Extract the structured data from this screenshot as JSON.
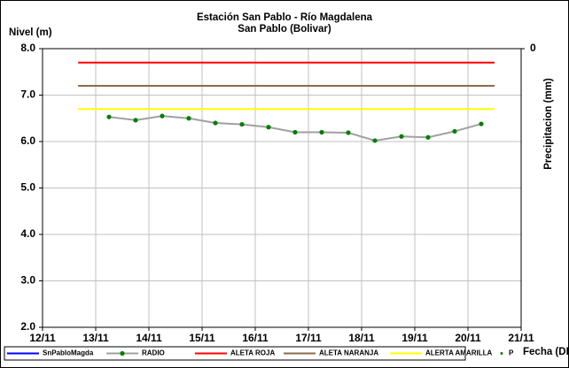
{
  "chart_data": {
    "type": "line",
    "title": "Estación San Pablo - Río Magdalena",
    "subtitle": "San Pablo (Bolivar)",
    "y_label": "Nivel (m)",
    "x_label": "Fecha (DD/MM)",
    "y2_label": "Precipitacion (mm)",
    "xlim": [
      12,
      21
    ],
    "xticks": [
      {
        "value": 12,
        "label": "12/11"
      },
      {
        "value": 13,
        "label": "13/11"
      },
      {
        "value": 14,
        "label": "14/11"
      },
      {
        "value": 15,
        "label": "15/11"
      },
      {
        "value": 16,
        "label": "16/11"
      },
      {
        "value": 17,
        "label": "17/11"
      },
      {
        "value": 18,
        "label": "18/11"
      },
      {
        "value": 19,
        "label": "19/11"
      },
      {
        "value": 20,
        "label": "20/11"
      },
      {
        "value": 21,
        "label": "21/11"
      }
    ],
    "ylim": [
      2,
      8
    ],
    "yticks": [
      {
        "value": 2,
        "label": "2.0"
      },
      {
        "value": 3,
        "label": "3.0"
      },
      {
        "value": 4,
        "label": "4.0"
      },
      {
        "value": 5,
        "label": "5.0"
      },
      {
        "value": 6,
        "label": "6.0"
      },
      {
        "value": 7,
        "label": "7.0"
      },
      {
        "value": 8,
        "label": "8.0"
      }
    ],
    "y2ticks": [
      0
    ],
    "grid": true,
    "legend": "bottom",
    "series": [
      {
        "name": "SnPabloMagda",
        "color": "#0000ff",
        "x": [],
        "values": []
      },
      {
        "name": "RADIO",
        "color": "#a0a0a0",
        "marker_color": "#008000",
        "x": [
          13.25,
          13.75,
          14.25,
          14.75,
          15.25,
          15.75,
          16.25,
          16.75,
          17.25,
          17.75,
          18.25,
          18.75,
          19.25,
          19.75,
          20.25
        ],
        "values": [
          6.53,
          6.46,
          6.55,
          6.5,
          6.4,
          6.37,
          6.31,
          6.2,
          6.2,
          6.19,
          6.02,
          6.11,
          6.09,
          6.22,
          6.38
        ]
      },
      {
        "name": "ALETA ROJA",
        "color": "#ff0000",
        "x": [
          12.67,
          20.5
        ],
        "values": [
          7.7,
          7.7
        ]
      },
      {
        "name": "ALETA NARANJA",
        "color": "#8b6b4a",
        "x": [
          12.67,
          20.5
        ],
        "values": [
          7.2,
          7.2
        ]
      },
      {
        "name": "ALERTA AMARILLA",
        "color": "#ffff00",
        "x": [
          12.67,
          20.5
        ],
        "values": [
          6.7,
          6.7
        ]
      },
      {
        "name": "P",
        "color": "#008000",
        "axis": "y2",
        "x": [],
        "values": []
      }
    ]
  }
}
